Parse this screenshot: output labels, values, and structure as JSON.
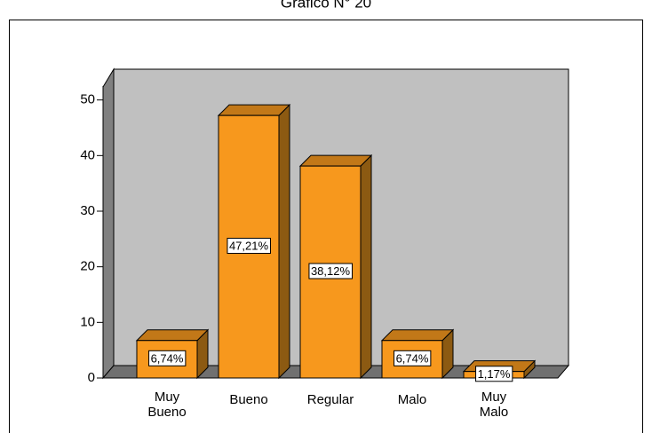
{
  "chart_data": {
    "type": "bar3d",
    "title": "Gráfico N° 20",
    "categories": [
      "Muy Bueno",
      "Bueno",
      "Regular",
      "Malo",
      "Muy Malo"
    ],
    "values": [
      6.74,
      47.21,
      38.12,
      6.74,
      1.17
    ],
    "value_labels": [
      "6,74%",
      "47,21%",
      "38,12%",
      "6,74%",
      "1,17%"
    ],
    "color": "#f7981d",
    "ylim": [
      0,
      52.5
    ],
    "yticks": [
      0,
      10,
      20,
      30,
      40,
      50
    ]
  }
}
